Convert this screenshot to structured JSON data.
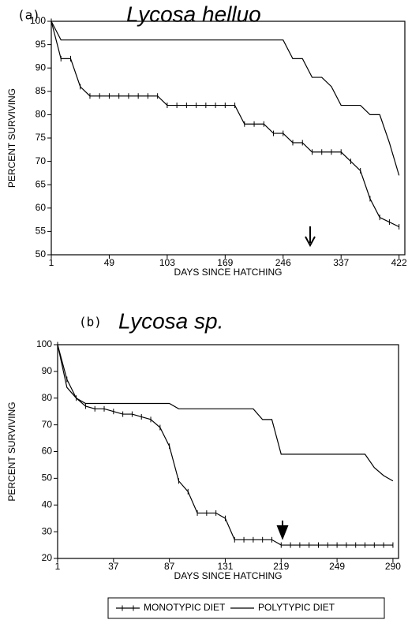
{
  "chart_data": [
    {
      "type": "line",
      "panel_label": "(a)",
      "title": "Lycosa helluo",
      "x_label": "DAYS SINCE HATCHING",
      "y_label": "PERCENT SURVIVING",
      "categories": [
        1,
        null,
        null,
        null,
        null,
        null,
        49,
        null,
        null,
        null,
        null,
        null,
        103,
        null,
        null,
        null,
        null,
        null,
        169,
        null,
        null,
        null,
        null,
        null,
        246,
        null,
        null,
        null,
        null,
        null,
        337,
        null,
        null,
        null,
        null,
        null,
        422
      ],
      "ylim": [
        50,
        100
      ],
      "yticks": [
        50,
        55,
        60,
        65,
        70,
        75,
        80,
        85,
        90,
        95,
        100
      ],
      "series": [
        {
          "name": "MONOTYPIC DIET",
          "color": "#000000",
          "marker": "+",
          "values": [
            100,
            92,
            92,
            86,
            84,
            84,
            84,
            84,
            84,
            84,
            84,
            84,
            82,
            82,
            82,
            82,
            82,
            82,
            82,
            82,
            78,
            78,
            78,
            76,
            76,
            74,
            74,
            72,
            72,
            72,
            72,
            70,
            68,
            62,
            58,
            57,
            56
          ]
        },
        {
          "name": "POLYTYPIC DIET",
          "color": "#000000",
          "values": [
            100,
            96,
            96,
            96,
            96,
            96,
            96,
            96,
            96,
            96,
            96,
            96,
            96,
            96,
            96,
            96,
            96,
            96,
            96,
            96,
            96,
            96,
            96,
            96,
            96,
            92,
            92,
            88,
            88,
            86,
            82,
            82,
            82,
            80,
            80,
            74,
            67
          ]
        }
      ]
    },
    {
      "type": "line",
      "panel_label": "(b)",
      "title": "Lycosa sp.",
      "x_label": "DAYS SINCE HATCHING",
      "y_label": "PERCENT SURVIVING",
      "categories": [
        1,
        null,
        null,
        null,
        null,
        null,
        37,
        null,
        null,
        null,
        null,
        null,
        87,
        null,
        null,
        null,
        null,
        null,
        131,
        null,
        null,
        null,
        null,
        null,
        219,
        null,
        null,
        null,
        null,
        null,
        249,
        null,
        null,
        null,
        null,
        null,
        290
      ],
      "ylim": [
        20,
        100
      ],
      "yticks": [
        20,
        30,
        40,
        50,
        60,
        70,
        80,
        90,
        100
      ],
      "series": [
        {
          "name": "MONOTYPIC DIET",
          "color": "#000000",
          "marker": "+",
          "values": [
            100,
            87,
            80,
            77,
            76,
            76,
            75,
            74,
            74,
            73,
            72,
            69,
            62,
            49,
            45,
            37,
            37,
            37,
            35,
            27,
            27,
            27,
            27,
            27,
            25,
            25,
            25,
            25,
            25,
            25,
            25,
            25,
            25,
            25,
            25,
            25,
            25
          ]
        },
        {
          "name": "POLYTYPIC DIET",
          "color": "#000000",
          "values": [
            100,
            84,
            80,
            78,
            78,
            78,
            78,
            78,
            78,
            78,
            78,
            78,
            78,
            76,
            76,
            76,
            76,
            76,
            76,
            76,
            76,
            76,
            72,
            72,
            59,
            59,
            59,
            59,
            59,
            59,
            59,
            59,
            59,
            59,
            54,
            51,
            49
          ]
        }
      ]
    }
  ]
}
